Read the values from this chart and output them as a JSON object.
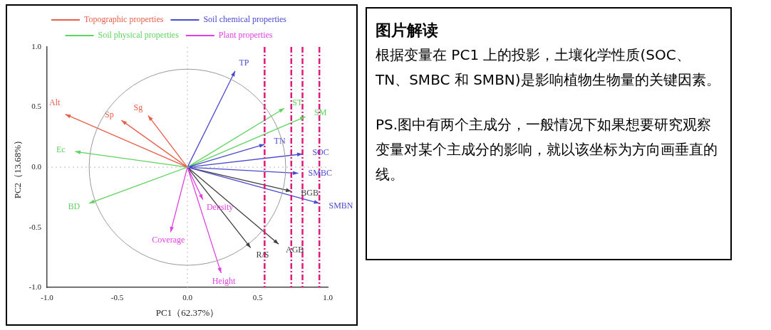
{
  "chart_data": [
    {
      "type": "line",
      "xlabel": "PC1（62.37%）",
      "ylabel": "PC2（13.68%）",
      "xlim": [
        -1,
        1
      ],
      "ylim": [
        -1,
        1
      ],
      "xticks": [
        {
          "value": -1,
          "label": "-1.0"
        },
        {
          "value": -0.5,
          "label": "-0.5"
        },
        {
          "value": 0,
          "label": "0.0"
        },
        {
          "value": 0.5,
          "label": "0.5"
        },
        {
          "value": 1,
          "label": "1.0"
        }
      ],
      "yticks": [
        {
          "value": -1,
          "label": "-1.0"
        },
        {
          "value": -0.5,
          "label": "-0.5"
        },
        {
          "value": 0,
          "label": "0.0"
        },
        {
          "value": 0.5,
          "label": "0.5"
        },
        {
          "value": 1,
          "label": "1.0"
        }
      ],
      "grid": false,
      "legend": "top",
      "marker": "none",
      "line_style": "solid",
      "series": [
        {
          "name": "Topographic properties",
          "color": "#e8604c",
          "x": [
            0,
            -0.87,
            null,
            0,
            -0.47,
            null,
            0,
            -0.28
          ],
          "values": [
            0,
            0.44,
            null,
            0,
            0.39,
            null,
            0,
            0.43
          ]
        },
        {
          "name": "Soil chemical properties",
          "color": "#4a4ad0",
          "x": [
            0,
            0.34,
            null,
            0,
            0.55,
            null,
            0,
            0.82,
            null,
            0,
            0.79,
            null,
            0,
            0.94
          ],
          "values": [
            0,
            0.8,
            null,
            0,
            0.19,
            null,
            0,
            0.11,
            null,
            0,
            -0.05,
            null,
            0,
            -0.3
          ]
        },
        {
          "name": "Soil physical properties",
          "color": "#5fd35f",
          "x": [
            0,
            -0.8,
            null,
            0,
            -0.7,
            null,
            0,
            0.69,
            null,
            0,
            0.84
          ],
          "values": [
            0,
            0.13,
            null,
            0,
            -0.3,
            null,
            0,
            0.49,
            null,
            0,
            0.42
          ]
        },
        {
          "name": "Plant properties",
          "color": "#e040e0",
          "x": [
            0,
            0.11,
            null,
            0,
            -0.12,
            null,
            0,
            0.24
          ],
          "values": [
            0,
            -0.27,
            null,
            0,
            -0.54,
            null,
            0,
            -0.88
          ]
        },
        {
          "color": "#404040",
          "x": [
            0,
            0.74,
            null,
            0,
            0.45,
            null,
            0,
            0.65
          ],
          "values": [
            0,
            -0.2,
            null,
            0,
            -0.67,
            null,
            0,
            -0.64
          ]
        }
      ],
      "annotations": [
        {
          "text": "Alt",
          "x": -0.87,
          "y": 0.44
        },
        {
          "text": "Sp",
          "x": -0.47,
          "y": 0.39
        },
        {
          "text": "Sg",
          "x": -0.28,
          "y": 0.43
        },
        {
          "text": "TP",
          "x": 0.34,
          "y": 0.8
        },
        {
          "text": "TN",
          "x": 0.55,
          "y": 0.19
        },
        {
          "text": "SOC",
          "x": 0.82,
          "y": 0.11
        },
        {
          "text": "SMBC",
          "x": 0.79,
          "y": -0.05
        },
        {
          "text": "SMBN",
          "x": 0.94,
          "y": -0.3
        },
        {
          "text": "Ec",
          "x": -0.8,
          "y": 0.13
        },
        {
          "text": "BD",
          "x": -0.7,
          "y": -0.3
        },
        {
          "text": "ST",
          "x": 0.69,
          "y": 0.49
        },
        {
          "text": "SM",
          "x": 0.84,
          "y": 0.42
        },
        {
          "text": "Density",
          "x": 0.11,
          "y": -0.27
        },
        {
          "text": "Coverage",
          "x": -0.12,
          "y": -0.54
        },
        {
          "text": "Height",
          "x": 0.24,
          "y": -0.88
        },
        {
          "text": "BGB",
          "x": 0.74,
          "y": -0.2
        },
        {
          "text": "R/S",
          "x": 0.45,
          "y": -0.67
        },
        {
          "text": "AGB",
          "x": 0.65,
          "y": -0.64
        }
      ],
      "ref_lines": [
        {
          "axis": "x",
          "value": 0,
          "color": "#bbbbbb",
          "line_style": "dotted"
        },
        {
          "axis": "y",
          "value": 0,
          "color": "#bbbbbb",
          "line_style": "dotted"
        },
        {
          "axis": "x",
          "value": 0.55,
          "color": "#e0197a",
          "line_style": "dashed"
        },
        {
          "axis": "x",
          "value": 0.74,
          "color": "#e0197a",
          "line_style": "dashed"
        },
        {
          "axis": "x",
          "value": 0.82,
          "color": "#e0197a",
          "line_style": "dashed"
        },
        {
          "axis": "x",
          "value": 0.94,
          "color": "#e0197a",
          "line_style": "dashed"
        }
      ]
    },
    {
      "type": "other",
      "title": "图片解读",
      "annotations": [
        "根据变量在 PC1 上的投影，土壤化学性质(SOC、TN、SMBC 和 SMBN)是影响植物生物量的关键因素。",
        "PS.图中有两个主成分，一般情况下如果想要研究观察变量对某个主成分的影响，就以该坐标为方向画垂直的线。"
      ]
    }
  ]
}
